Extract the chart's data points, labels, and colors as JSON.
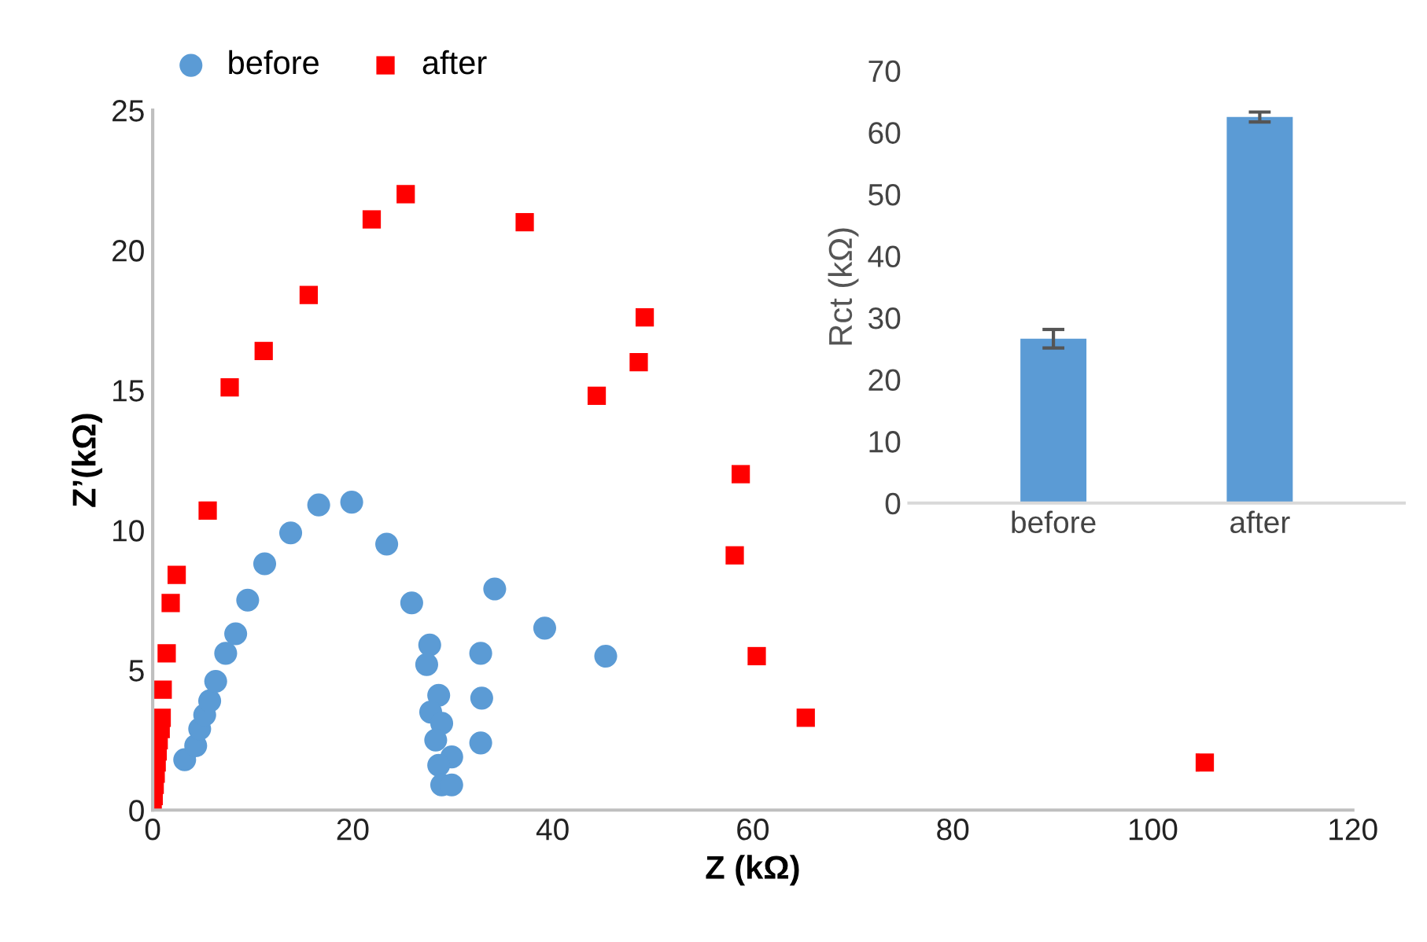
{
  "chart_data": [
    {
      "type": "scatter",
      "xlabel": "Z (kΩ)",
      "ylabel": "Z’(kΩ)",
      "xlim": [
        0,
        120
      ],
      "ylim": [
        0,
        25
      ],
      "xticks": [
        0,
        20,
        40,
        60,
        80,
        100,
        120
      ],
      "yticks": [
        0,
        5,
        10,
        15,
        20,
        25
      ],
      "grid": false,
      "legend": "top left",
      "series": [
        {
          "name": "before",
          "color": "#5b9bd5",
          "marker": "circle",
          "x": [
            3.2,
            4.3,
            4.7,
            5.2,
            5.7,
            6.3,
            7.3,
            8.3,
            9.5,
            11.2,
            13.8,
            16.6,
            19.9,
            23.4,
            25.9,
            27.7,
            27.4,
            28.6,
            27.8,
            28.9,
            28.3,
            29.9,
            28.6,
            28.9,
            29.9,
            34.2,
            32.8,
            32.9,
            32.8,
            39.2,
            45.3
          ],
          "values": [
            1.8,
            2.3,
            2.9,
            3.4,
            3.9,
            4.6,
            5.6,
            6.3,
            7.5,
            8.8,
            9.9,
            10.9,
            11.0,
            9.5,
            7.4,
            5.9,
            5.2,
            4.1,
            3.5,
            3.1,
            2.5,
            1.9,
            1.6,
            0.9,
            0.9,
            7.9,
            5.6,
            4.0,
            2.4,
            6.5,
            5.5
          ]
        },
        {
          "name": "after",
          "color": "#ff0000",
          "marker": "square",
          "x": [
            0.0,
            0.1,
            0.2,
            0.3,
            0.4,
            0.5,
            0.6,
            0.8,
            0.9,
            1.0,
            1.4,
            1.8,
            2.4,
            5.5,
            7.7,
            11.1,
            15.6,
            21.9,
            25.3,
            37.2,
            44.4,
            48.6,
            49.2,
            58.8,
            58.2,
            60.4,
            65.3,
            105.2
          ],
          "values": [
            0.1,
            0.5,
            0.9,
            1.3,
            1.7,
            2.1,
            2.5,
            2.9,
            3.3,
            4.3,
            5.6,
            7.4,
            8.4,
            10.7,
            15.1,
            16.4,
            18.4,
            21.1,
            22.0,
            21.0,
            14.8,
            16.0,
            17.6,
            12.0,
            9.1,
            5.5,
            3.3,
            1.7
          ]
        }
      ]
    },
    {
      "type": "bar",
      "categories": [
        "before",
        "after"
      ],
      "values": [
        26.6,
        62.5
      ],
      "errors": [
        1.5,
        0.8
      ],
      "color": "#5b9bd5",
      "ylabel": "Rct (kΩ)",
      "ylim": [
        0,
        70
      ],
      "yticks": [
        0,
        10,
        20,
        30,
        40,
        50,
        60,
        70
      ],
      "grid": false
    }
  ]
}
